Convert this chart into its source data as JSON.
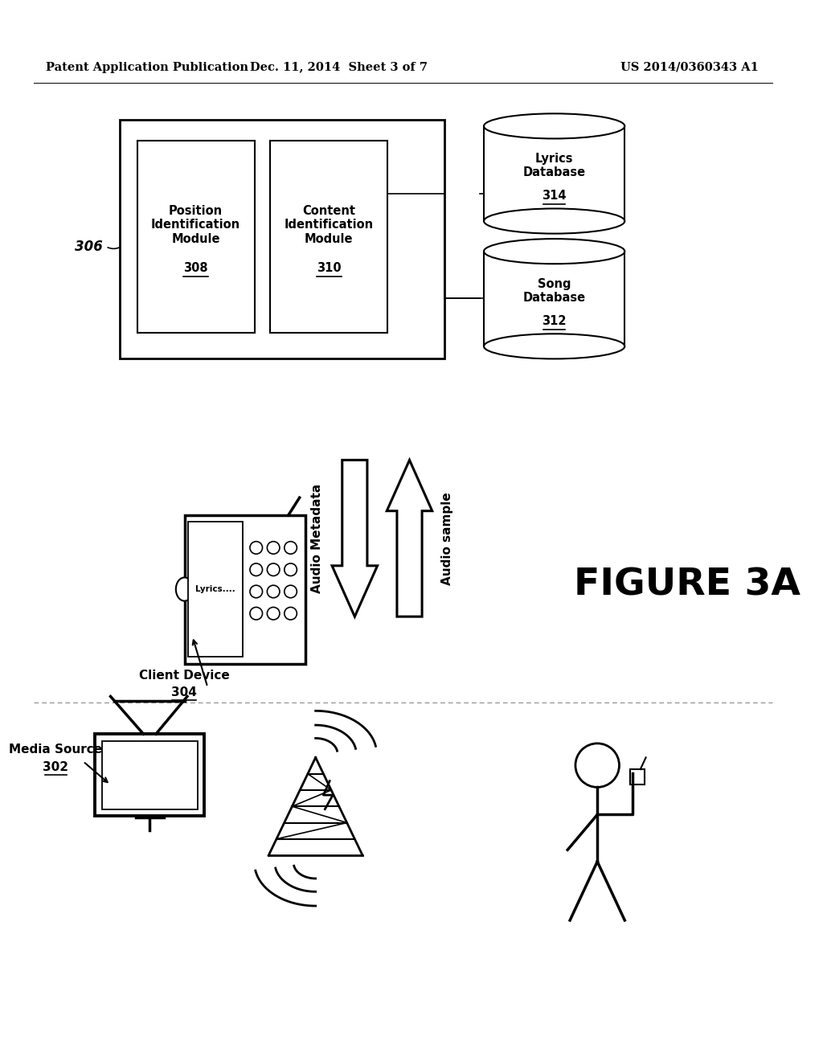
{
  "background_color": "#ffffff",
  "header_left": "Patent Application Publication",
  "header_center": "Dec. 11, 2014  Sheet 3 of 7",
  "header_right": "US 2014/0360343 A1",
  "figure_label": "FIGURE 3A"
}
